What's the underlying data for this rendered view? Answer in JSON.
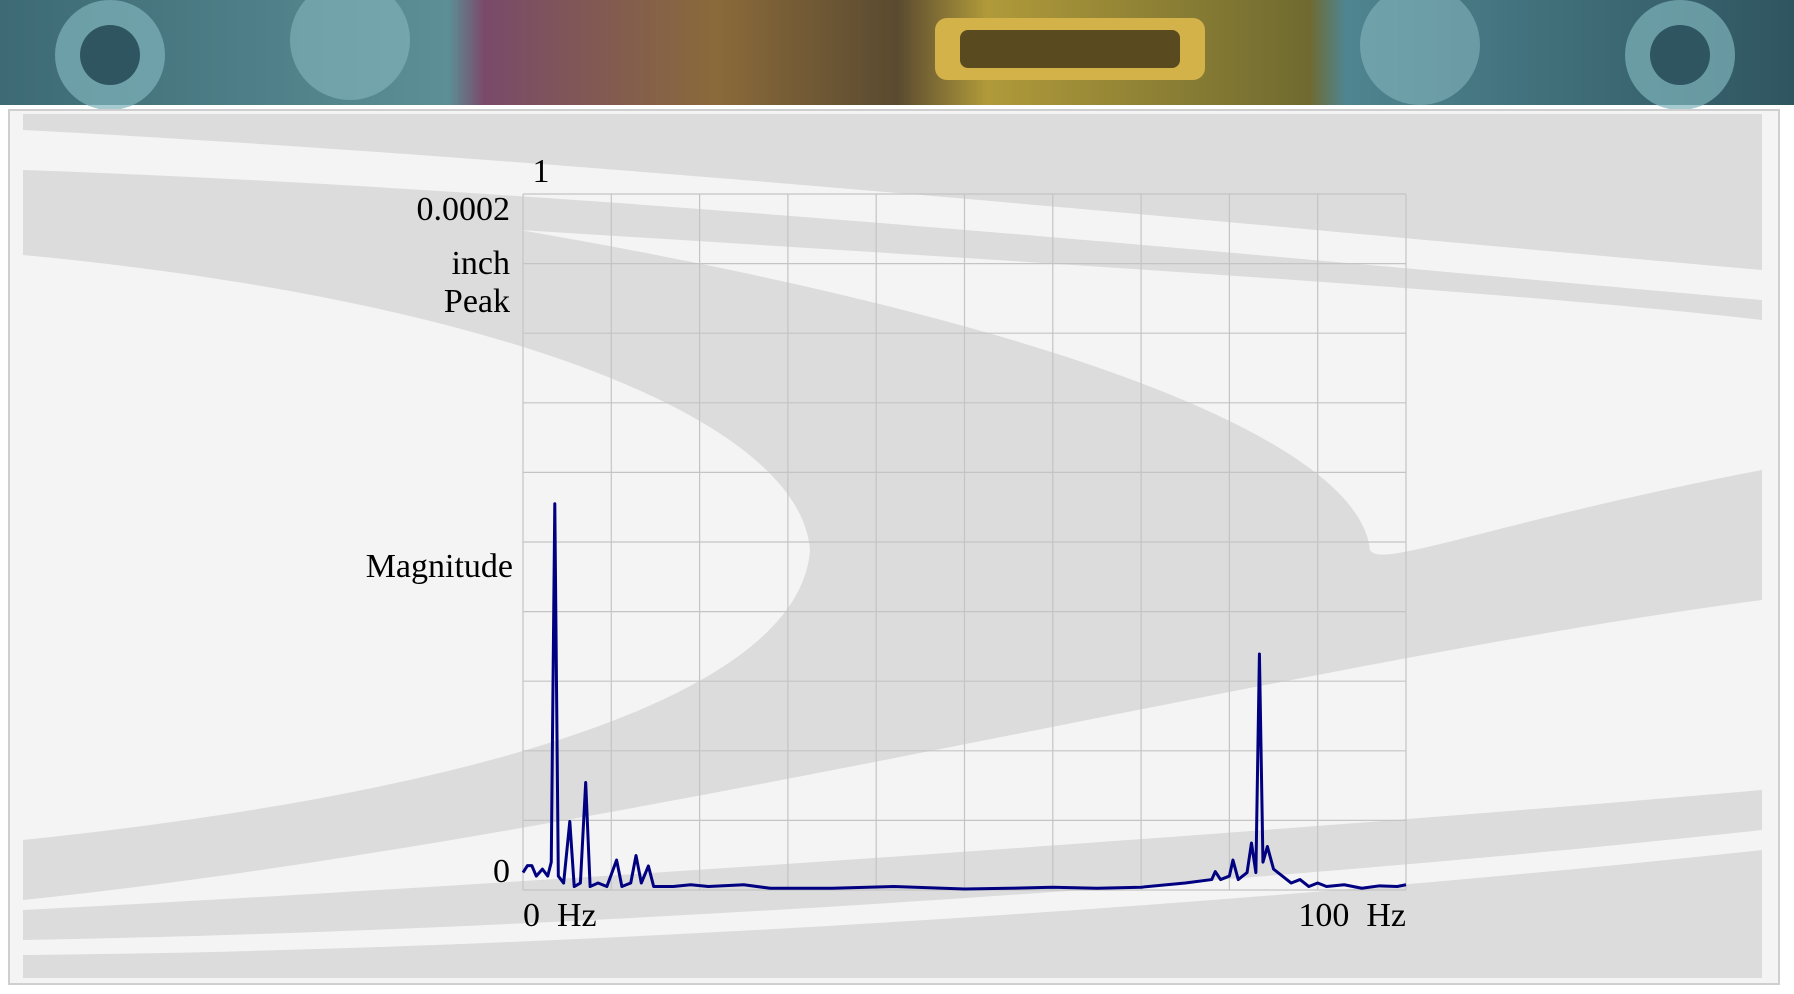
{
  "chart_data": {
    "type": "line",
    "top_label": "1",
    "y_unit_lines": [
      "inch",
      "Peak"
    ],
    "y_label": "Magnitude",
    "color": "#000080",
    "xlim": [
      0,
      100
    ],
    "ylim": [
      0,
      0.0002
    ],
    "xticks": [
      {
        "value": 0,
        "label": "0  Hz"
      },
      {
        "value": 100,
        "label": "100  Hz"
      }
    ],
    "yticks": [
      0,
      0.0002
    ],
    "xgrid": [
      0,
      10,
      20,
      30,
      40,
      50,
      60,
      70,
      80,
      90,
      100
    ],
    "ygrid": [
      0,
      2e-05,
      4e-05,
      6e-05,
      8e-05,
      0.0001,
      0.00012,
      0.00014,
      0.00016,
      0.00018,
      0.0002
    ],
    "x": [
      0,
      0.5,
      1.0,
      1.5,
      2.2,
      2.8,
      3.2,
      3.6,
      4.0,
      4.6,
      5.3,
      5.8,
      6.5,
      7.1,
      7.6,
      8.5,
      9.5,
      10.6,
      11.2,
      12.2,
      12.8,
      13.4,
      14.2,
      14.8,
      17,
      19,
      21,
      25,
      28,
      35,
      42,
      50,
      55,
      60,
      65,
      70,
      75,
      78,
      78.4,
      79,
      80,
      80.4,
      81,
      82,
      82.5,
      83,
      83.4,
      83.8,
      84.3,
      85,
      86,
      87,
      88,
      89,
      90,
      91,
      93,
      95,
      97,
      99,
      100
    ],
    "values": [
      5e-06,
      7e-06,
      7e-06,
      4e-06,
      6e-06,
      4e-06,
      8e-06,
      0.000111,
      4e-06,
      2e-06,
      1.97e-05,
      1e-06,
      2e-06,
      3.09e-05,
      1e-06,
      2e-06,
      1e-06,
      8.6e-06,
      1e-06,
      2e-06,
      9.9e-06,
      2e-06,
      6.9e-06,
      1e-06,
      1e-06,
      1.5e-06,
      1e-06,
      1.5e-06,
      5e-07,
      5e-07,
      1e-06,
      3e-07,
      5e-07,
      8e-07,
      5e-07,
      8e-07,
      2e-06,
      3e-06,
      5.3e-06,
      3e-06,
      4e-06,
      8.6e-06,
      3e-06,
      5e-06,
      1.35e-05,
      5e-06,
      6.78e-05,
      8e-06,
      1.25e-05,
      6e-06,
      4e-06,
      2e-06,
      3e-06,
      1e-06,
      2e-06,
      1e-06,
      1.5e-06,
      5e-07,
      1.2e-06,
      1e-06,
      1.5e-06
    ],
    "grid": true
  }
}
